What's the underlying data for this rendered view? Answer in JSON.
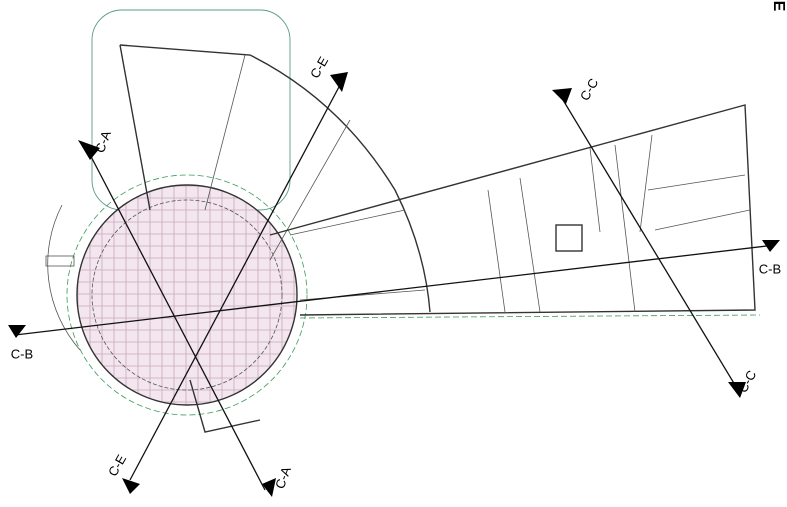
{
  "sections": {
    "labels": [
      "C-A",
      "C-E",
      "C-C",
      "C-B"
    ]
  },
  "corner_mark": "E"
}
